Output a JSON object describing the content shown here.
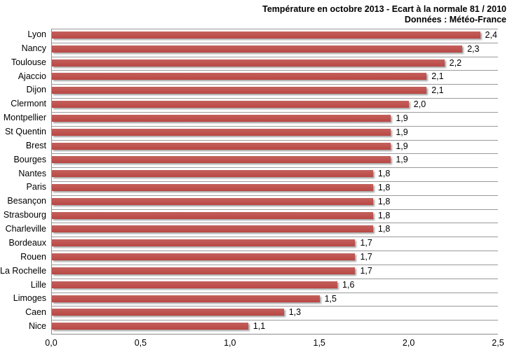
{
  "header": {
    "title": "Température en octobre 2013 - Ecart à la normale 81 / 2010",
    "subtitle": "Données : Météo-France"
  },
  "chart_data": {
    "type": "bar",
    "orientation": "horizontal",
    "title": "Température en octobre 2013 - Ecart à la normale 81 / 2010",
    "subtitle": "Données : Météo-France",
    "categories": [
      "Lyon",
      "Nancy",
      "Toulouse",
      "Ajaccio",
      "Dijon",
      "Clermont",
      "Montpellier",
      "St Quentin",
      "Brest",
      "Bourges",
      "Nantes",
      "Paris",
      "Besançon",
      "Strasbourg",
      "Charleville",
      "Bordeaux",
      "Rouen",
      "La Rochelle",
      "Lille",
      "Limoges",
      "Caen",
      "Nice"
    ],
    "values": [
      2.4,
      2.3,
      2.2,
      2.1,
      2.1,
      2.0,
      1.9,
      1.9,
      1.9,
      1.9,
      1.8,
      1.8,
      1.8,
      1.8,
      1.8,
      1.7,
      1.7,
      1.7,
      1.6,
      1.5,
      1.3,
      1.1
    ],
    "value_labels": [
      "2,4",
      "2,3",
      "2,2",
      "2,1",
      "2,1",
      "2,0",
      "1,9",
      "1,9",
      "1,9",
      "1,9",
      "1,8",
      "1,8",
      "1,8",
      "1,8",
      "1,8",
      "1,7",
      "1,7",
      "1,7",
      "1,6",
      "1,5",
      "1,3",
      "1,1"
    ],
    "xlabel": "",
    "ylabel": "",
    "xlim": [
      0,
      2.5
    ],
    "x_tick_labels": [
      "0,0",
      "0,5",
      "1,0",
      "1,5",
      "2,0",
      "2,5"
    ],
    "grid": "horizontal category gridlines, no vertical gridlines",
    "legend": "none",
    "colors": {
      "bar": "#BE4B48",
      "gridline": "#9A9A9A",
      "axis": "#8C8C8C",
      "text": "#000000",
      "background": "#FFFFFF"
    }
  }
}
